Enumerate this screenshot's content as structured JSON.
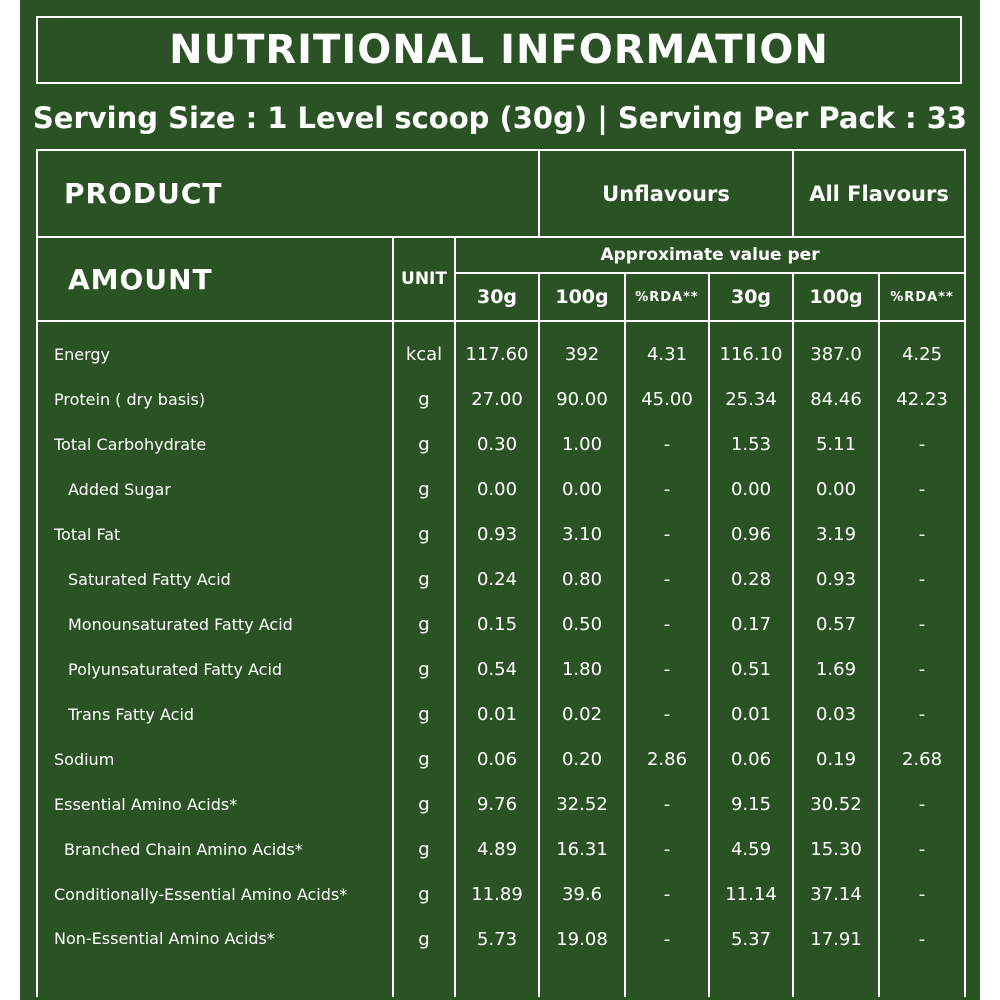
{
  "title": "NUTRITIONAL INFORMATION",
  "serving_line": "Serving Size : 1 Level scoop (30g) | Serving Per Pack : 33",
  "header": {
    "product": "PRODUCT",
    "unflavoured": "Unflavours",
    "all_flavours": "All Flavours",
    "amount": "AMOUNT",
    "unit": "UNIT",
    "approx": "Approximate value per",
    "cols": [
      "30g",
      "100g",
      "%RDA**",
      "30g",
      "100g",
      "%RDA**"
    ]
  },
  "rows": [
    {
      "label": "Energy",
      "unit": "kcal",
      "u30": "117.60",
      "u100": "392",
      "urda": "4.31",
      "a30": "116.10",
      "a100": "387.0",
      "arda": "4.25"
    },
    {
      "label": "Protein ( dry basis)",
      "unit": "g",
      "u30": "27.00",
      "u100": "90.00",
      "urda": "45.00",
      "a30": "25.34",
      "a100": "84.46",
      "arda": "42.23"
    },
    {
      "label": "Total Carbohydrate",
      "unit": "g",
      "u30": "0.30",
      "u100": "1.00",
      "urda": "-",
      "a30": "1.53",
      "a100": "5.11",
      "arda": "-"
    },
    {
      "label": "Added Sugar",
      "unit": "g",
      "u30": "0.00",
      "u100": "0.00",
      "urda": "-",
      "a30": "0.00",
      "a100": "0.00",
      "arda": "-"
    },
    {
      "label": "Total Fat",
      "unit": "g",
      "u30": "0.93",
      "u100": "3.10",
      "urda": "-",
      "a30": "0.96",
      "a100": "3.19",
      "arda": "-"
    },
    {
      "label": "Saturated Fatty Acid",
      "unit": "g",
      "u30": "0.24",
      "u100": "0.80",
      "urda": "-",
      "a30": "0.28",
      "a100": "0.93",
      "arda": "-"
    },
    {
      "label": "Monounsaturated Fatty Acid",
      "unit": "g",
      "u30": "0.15",
      "u100": "0.50",
      "urda": "-",
      "a30": "0.17",
      "a100": "0.57",
      "arda": "-"
    },
    {
      "label": "Polyunsaturated Fatty Acid",
      "unit": "g",
      "u30": "0.54",
      "u100": "1.80",
      "urda": "-",
      "a30": "0.51",
      "a100": "1.69",
      "arda": "-"
    },
    {
      "label": "Trans Fatty Acid",
      "unit": "g",
      "u30": "0.01",
      "u100": "0.02",
      "urda": "-",
      "a30": "0.01",
      "a100": "0.03",
      "arda": "-"
    },
    {
      "label": "Sodium",
      "unit": "g",
      "u30": "0.06",
      "u100": "0.20",
      "urda": "2.86",
      "a30": "0.06",
      "a100": "0.19",
      "arda": "2.68"
    },
    {
      "label": "Essential Amino Acids*",
      "unit": "g",
      "u30": "9.76",
      "u100": "32.52",
      "urda": "-",
      "a30": "9.15",
      "a100": "30.52",
      "arda": "-"
    },
    {
      "label": "Branched Chain Amino Acids*",
      "unit": "g",
      "u30": "4.89",
      "u100": "16.31",
      "urda": "-",
      "a30": "4.59",
      "a100": "15.30",
      "arda": "-"
    },
    {
      "label": "Conditionally-Essential Amino Acids*",
      "unit": "g",
      "u30": "11.89",
      "u100": "39.6",
      "urda": "-",
      "a30": "11.14",
      "a100": "37.14",
      "arda": "-"
    },
    {
      "label": "Non-Essential Amino Acids*",
      "unit": "g",
      "u30": "5.73",
      "u100": "19.08",
      "urda": "-",
      "a30": "5.37",
      "a100": "17.91",
      "arda": "-"
    }
  ],
  "colors": {
    "background": "#2b5224",
    "text": "#ffffff"
  }
}
